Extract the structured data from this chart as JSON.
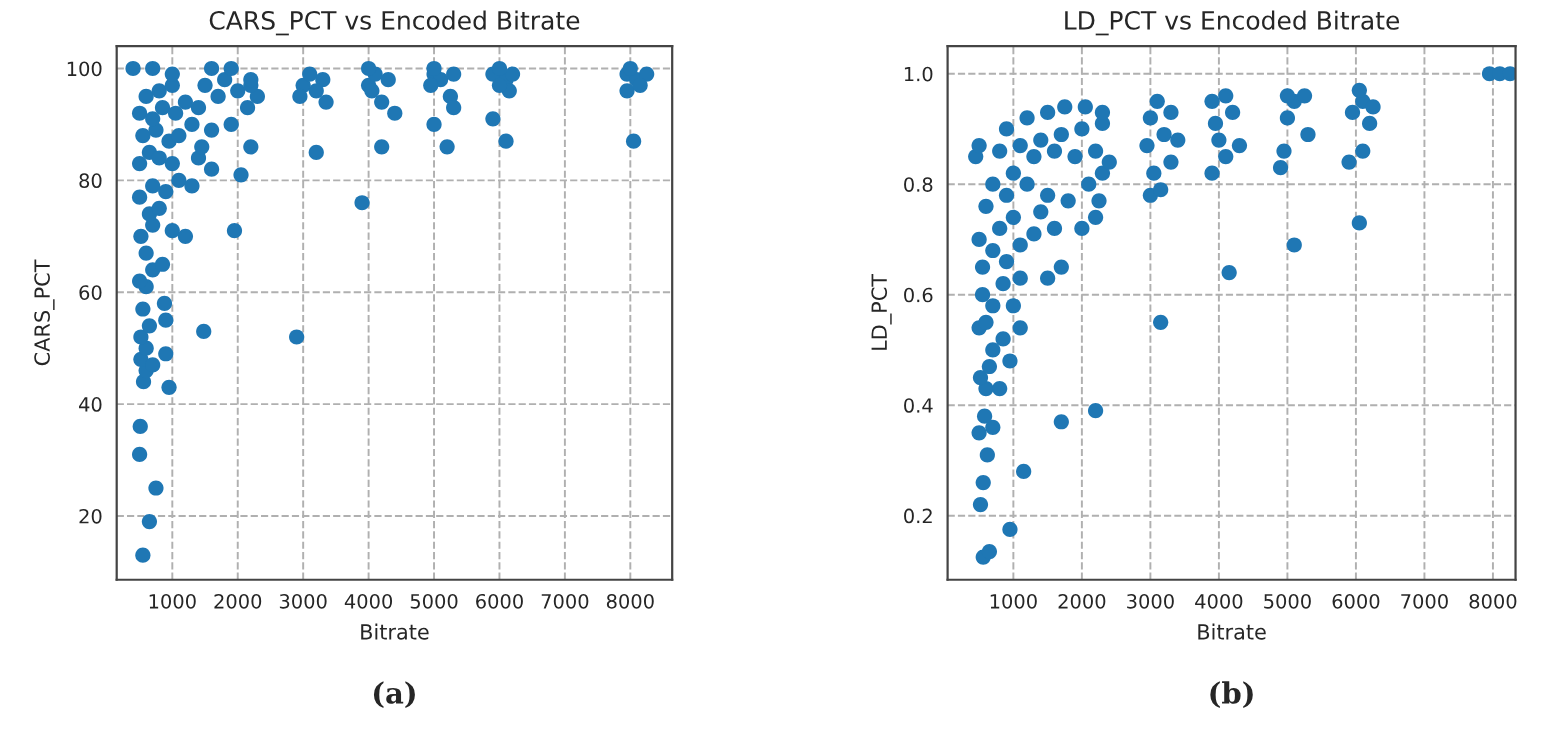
{
  "chart_data": [
    {
      "type": "scatter",
      "title": "CARS_PCT vs Encoded Bitrate",
      "xlabel": "Bitrate",
      "ylabel": "CARS_PCT",
      "annotations": [
        "(a)"
      ],
      "grid": true,
      "marker": "circle",
      "legend": false,
      "xlim": [
        150,
        8640
      ],
      "ylim": [
        8.6,
        104
      ],
      "xticks": [
        1000,
        2000,
        3000,
        4000,
        5000,
        6000,
        7000,
        8000
      ],
      "yticks": [
        20,
        40,
        60,
        80,
        100
      ],
      "series": [
        {
          "color": "#1f77b4",
          "x": [
            550,
            650,
            750,
            500,
            510,
            560,
            600,
            520,
            700,
            600,
            950,
            900,
            520,
            650,
            900,
            1480,
            2900,
            550,
            600,
            880,
            500,
            700,
            850,
            600,
            520,
            700,
            650,
            800,
            1000,
            1200,
            1950,
            3900,
            500,
            700,
            900,
            1100,
            1300,
            1600,
            2050,
            2200,
            500,
            650,
            800,
            1000,
            1400,
            1450,
            4200,
            5200,
            6100,
            8050,
            5000,
            5900,
            3200,
            550,
            750,
            950,
            1100,
            1300,
            1600,
            1900,
            2150,
            500,
            700,
            850,
            1050,
            1200,
            1400,
            1700,
            2000,
            2300,
            600,
            800,
            1000,
            1500,
            1800,
            2200,
            400,
            700,
            1000,
            1600,
            1900,
            2200,
            3000,
            3100,
            3300,
            2950,
            3200,
            3350,
            4000,
            4100,
            4300,
            4200,
            4400,
            4050,
            5000,
            5100,
            5300,
            5250,
            5300,
            4950,
            5900,
            6100,
            6200,
            6150,
            6000,
            7950,
            8100,
            8250,
            7950,
            8150,
            4000,
            5000,
            6000,
            8000
          ],
          "values": [
            13,
            19,
            25,
            31,
            36,
            44,
            46,
            48,
            47,
            50,
            43,
            49,
            52,
            54,
            55,
            53,
            52,
            57,
            61,
            58,
            62,
            64,
            65,
            67,
            70,
            72,
            74,
            75,
            71,
            70,
            71,
            76,
            77,
            79,
            78,
            80,
            79,
            82,
            81,
            86,
            83,
            85,
            84,
            83,
            84,
            86,
            86,
            86,
            87,
            87,
            90,
            91,
            85,
            88,
            89,
            87,
            88,
            90,
            89,
            90,
            93,
            92,
            91,
            93,
            92,
            94,
            93,
            95,
            96,
            95,
            95,
            96,
            97,
            97,
            98,
            97,
            100,
            100,
            99,
            100,
            100,
            98,
            97,
            99,
            98,
            95,
            96,
            94,
            97,
            99,
            98,
            94,
            92,
            96,
            99,
            98,
            99,
            95,
            93,
            97,
            99,
            98,
            99,
            96,
            97,
            99,
            98,
            99,
            96,
            97,
            100,
            100,
            100,
            100
          ]
        }
      ]
    },
    {
      "type": "scatter",
      "title": "LD_PCT vs Encoded Bitrate",
      "xlabel": "Bitrate",
      "ylabel": "LD_PCT",
      "annotations": [
        "(b)"
      ],
      "grid": true,
      "marker": "circle",
      "legend": false,
      "xlim": [
        40,
        8330
      ],
      "ylim": [
        0.084,
        1.05
      ],
      "xticks": [
        1000,
        2000,
        3000,
        4000,
        5000,
        6000,
        7000,
        8000
      ],
      "yticks": [
        {
          "value": 0.2,
          "label": "0.2"
        },
        {
          "value": 0.4,
          "label": "0.4"
        },
        {
          "value": 0.6,
          "label": "0.6"
        },
        {
          "value": 0.8,
          "label": "0.8"
        },
        {
          "value": 1.0,
          "label": "1.0"
        }
      ],
      "series": [
        {
          "color": "#1f77b4",
          "x": [
            560,
            650,
            950,
            520,
            560,
            1150,
            620,
            500,
            700,
            580,
            1700,
            2200,
            600,
            800,
            950,
            520,
            650,
            700,
            850,
            500,
            600,
            1100,
            3150,
            700,
            1000,
            550,
            850,
            1100,
            1500,
            1700,
            4150,
            5100,
            6050,
            550,
            700,
            900,
            1100,
            1300,
            1600,
            2000,
            2200,
            500,
            800,
            1000,
            1400,
            1800,
            2250,
            3000,
            3150,
            600,
            900,
            1200,
            1500,
            2100,
            2300,
            3050,
            3900,
            4100,
            4900,
            5900,
            6100,
            700,
            1000,
            1300,
            1600,
            1900,
            2200,
            2400,
            3300,
            450,
            500,
            800,
            1100,
            1400,
            1700,
            2000,
            2300,
            2950,
            3200,
            3400,
            4000,
            4300,
            4950,
            5300,
            900,
            1200,
            1500,
            1750,
            2050,
            2300,
            3000,
            3100,
            3300,
            3950,
            4200,
            4100,
            3900,
            5000,
            5100,
            5250,
            5950,
            6100,
            6250,
            6050,
            6200,
            5000,
            7950,
            8100,
            8250
          ],
          "values": [
            0.125,
            0.135,
            0.175,
            0.22,
            0.26,
            0.28,
            0.31,
            0.35,
            0.36,
            0.38,
            0.37,
            0.39,
            0.43,
            0.43,
            0.48,
            0.45,
            0.47,
            0.5,
            0.52,
            0.54,
            0.55,
            0.54,
            0.55,
            0.58,
            0.58,
            0.6,
            0.62,
            0.63,
            0.63,
            0.65,
            0.64,
            0.69,
            0.73,
            0.65,
            0.68,
            0.66,
            0.69,
            0.71,
            0.72,
            0.72,
            0.74,
            0.7,
            0.72,
            0.74,
            0.75,
            0.77,
            0.77,
            0.78,
            0.79,
            0.76,
            0.78,
            0.8,
            0.78,
            0.8,
            0.82,
            0.82,
            0.82,
            0.85,
            0.83,
            0.84,
            0.86,
            0.8,
            0.82,
            0.85,
            0.86,
            0.85,
            0.86,
            0.84,
            0.84,
            0.85,
            0.87,
            0.86,
            0.87,
            0.88,
            0.89,
            0.9,
            0.91,
            0.87,
            0.89,
            0.88,
            0.88,
            0.87,
            0.86,
            0.89,
            0.9,
            0.92,
            0.93,
            0.94,
            0.94,
            0.93,
            0.92,
            0.95,
            0.93,
            0.91,
            0.93,
            0.96,
            0.95,
            0.92,
            0.95,
            0.96,
            0.93,
            0.95,
            0.94,
            0.97,
            0.91,
            0.96,
            1.0,
            1.0,
            1.0
          ]
        }
      ]
    }
  ]
}
